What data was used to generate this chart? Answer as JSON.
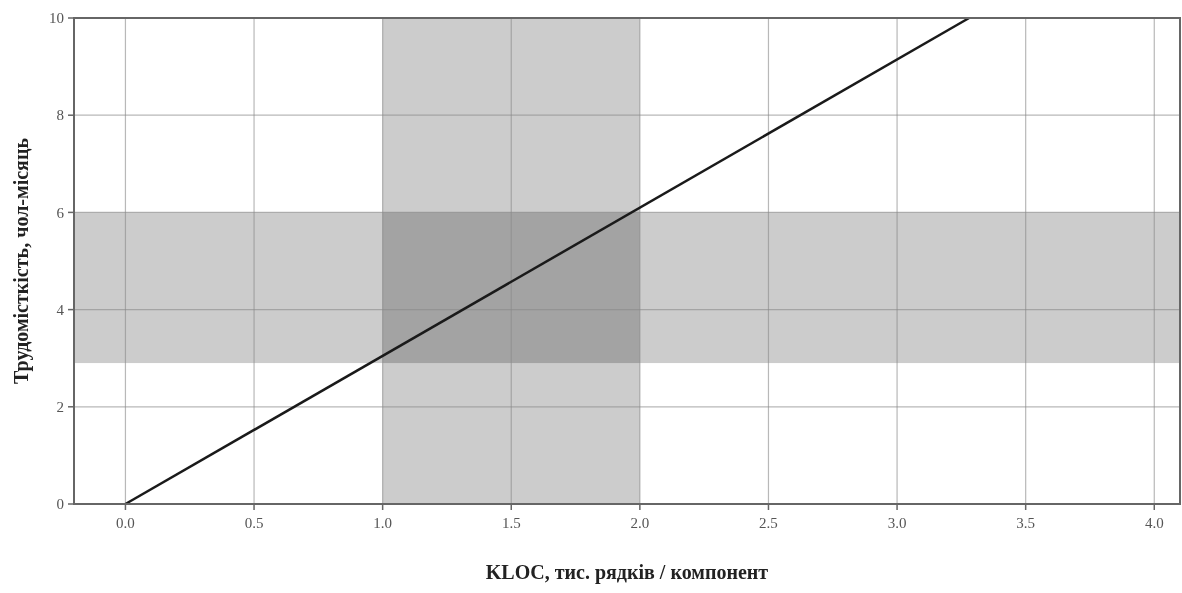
{
  "chart_data": {
    "type": "line",
    "xlabel": "KLOC, тис. рядків / компонент",
    "ylabel": "Трудомісткість, чол-місяць",
    "x": [
      0,
      3.28
    ],
    "series": [
      {
        "color": "#1a1a1a",
        "values": [
          0,
          10
        ]
      }
    ],
    "xlim": [
      -0.2,
      4.1
    ],
    "xticks": [
      {
        "value": 0,
        "label": "0.0"
      },
      0.5,
      {
        "value": 1,
        "label": "1.0"
      },
      1.5,
      {
        "value": 2,
        "label": "2.0"
      },
      2.5,
      {
        "value": 3,
        "label": "3.0"
      },
      3.5,
      {
        "value": 4,
        "label": "4.0"
      }
    ],
    "ylim": [
      0,
      10
    ],
    "yticks": [
      0,
      2,
      4,
      6,
      8,
      10
    ],
    "bands": [
      {
        "axis": "x",
        "from": 1,
        "to": 2,
        "color": "#cccccc"
      },
      {
        "axis": "y",
        "from": 2.9,
        "to": 6,
        "color": "#cccccc"
      }
    ],
    "grid": true,
    "marker": "none",
    "line_style": "solid"
  }
}
